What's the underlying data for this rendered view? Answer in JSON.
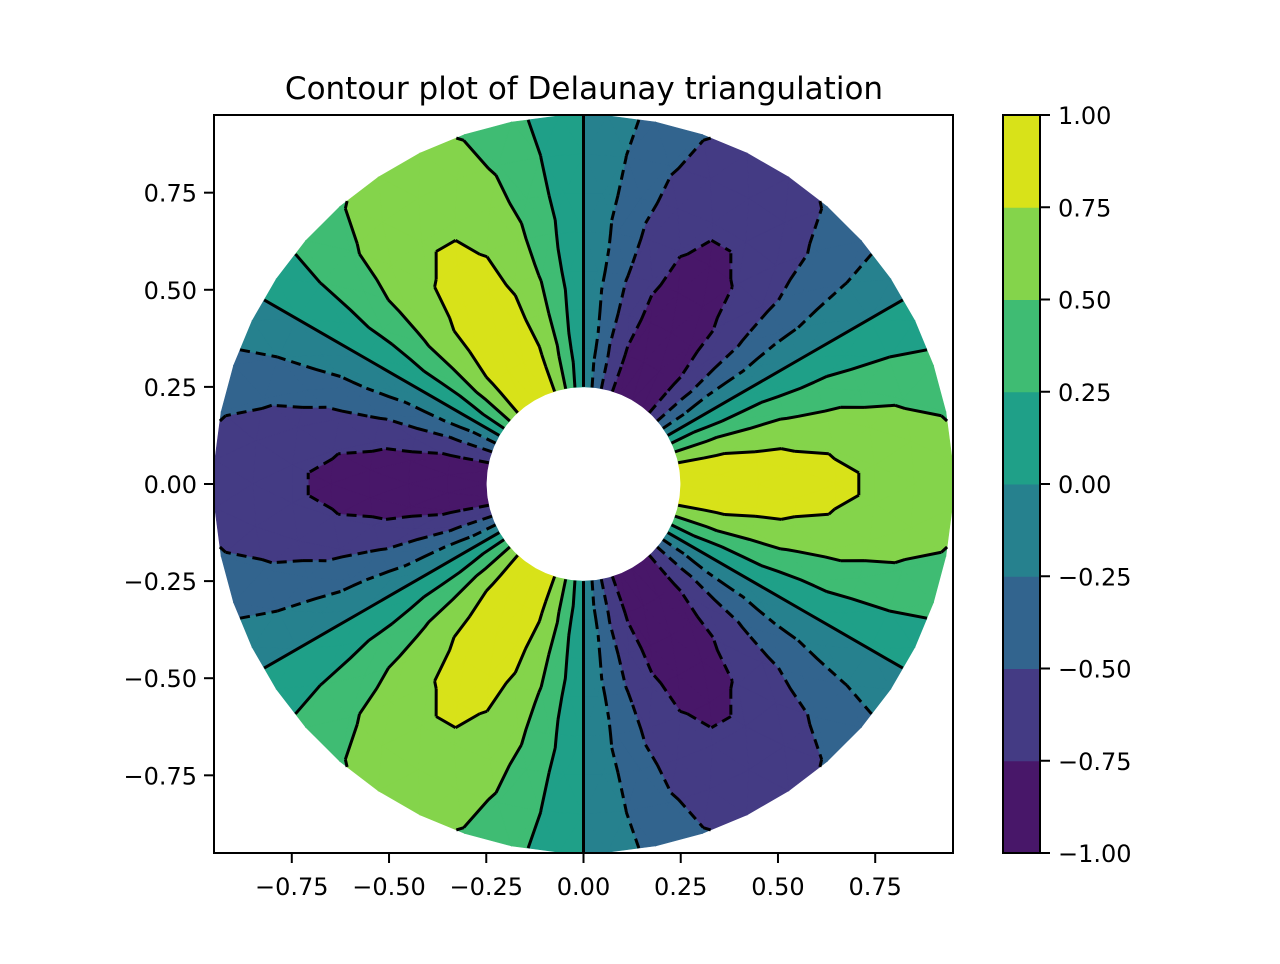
{
  "chart_data": {
    "type": "contour",
    "title": "Contour plot of Delaunay triangulation",
    "xlabel": "",
    "ylabel": "",
    "xlim": [
      -0.95,
      0.95
    ],
    "ylim": [
      -0.95,
      0.95
    ],
    "grid": false,
    "mesh": {
      "n_angles": 48,
      "n_radii": 8,
      "min_radius": 0.25,
      "max_radius": 0.95
    },
    "field": "z = cos(r) * cos(3θ)",
    "levels": [
      -1.0,
      -0.75,
      -0.5,
      -0.25,
      0.0,
      0.25,
      0.5,
      0.75,
      1.0
    ],
    "band_colors": [
      "#481769",
      "#443b84",
      "#32648e",
      "#26818e",
      "#1fa088",
      "#3fbc73",
      "#84d44b",
      "#d8e219"
    ],
    "line_color": "#000000",
    "negative_lines": "dashed",
    "xticks": [
      "−0.75",
      "−0.50",
      "−0.25",
      "0.00",
      "0.25",
      "0.50",
      "0.75"
    ],
    "xtick_values": [
      -0.75,
      -0.5,
      -0.25,
      0,
      0.25,
      0.5,
      0.75
    ],
    "yticks": [
      "−0.75",
      "−0.50",
      "−0.25",
      "0.00",
      "0.25",
      "0.50",
      "0.75"
    ],
    "ytick_values": [
      -0.75,
      -0.5,
      -0.25,
      0,
      0.25,
      0.5,
      0.75
    ],
    "colorbar": {
      "ticks": [
        "−1.00",
        "−0.75",
        "−0.50",
        "−0.25",
        "0.00",
        "0.25",
        "0.50",
        "0.75",
        "1.00"
      ],
      "tick_values": [
        -1,
        -0.75,
        -0.5,
        -0.25,
        0,
        0.25,
        0.5,
        0.75,
        1
      ],
      "placement": "right"
    }
  }
}
